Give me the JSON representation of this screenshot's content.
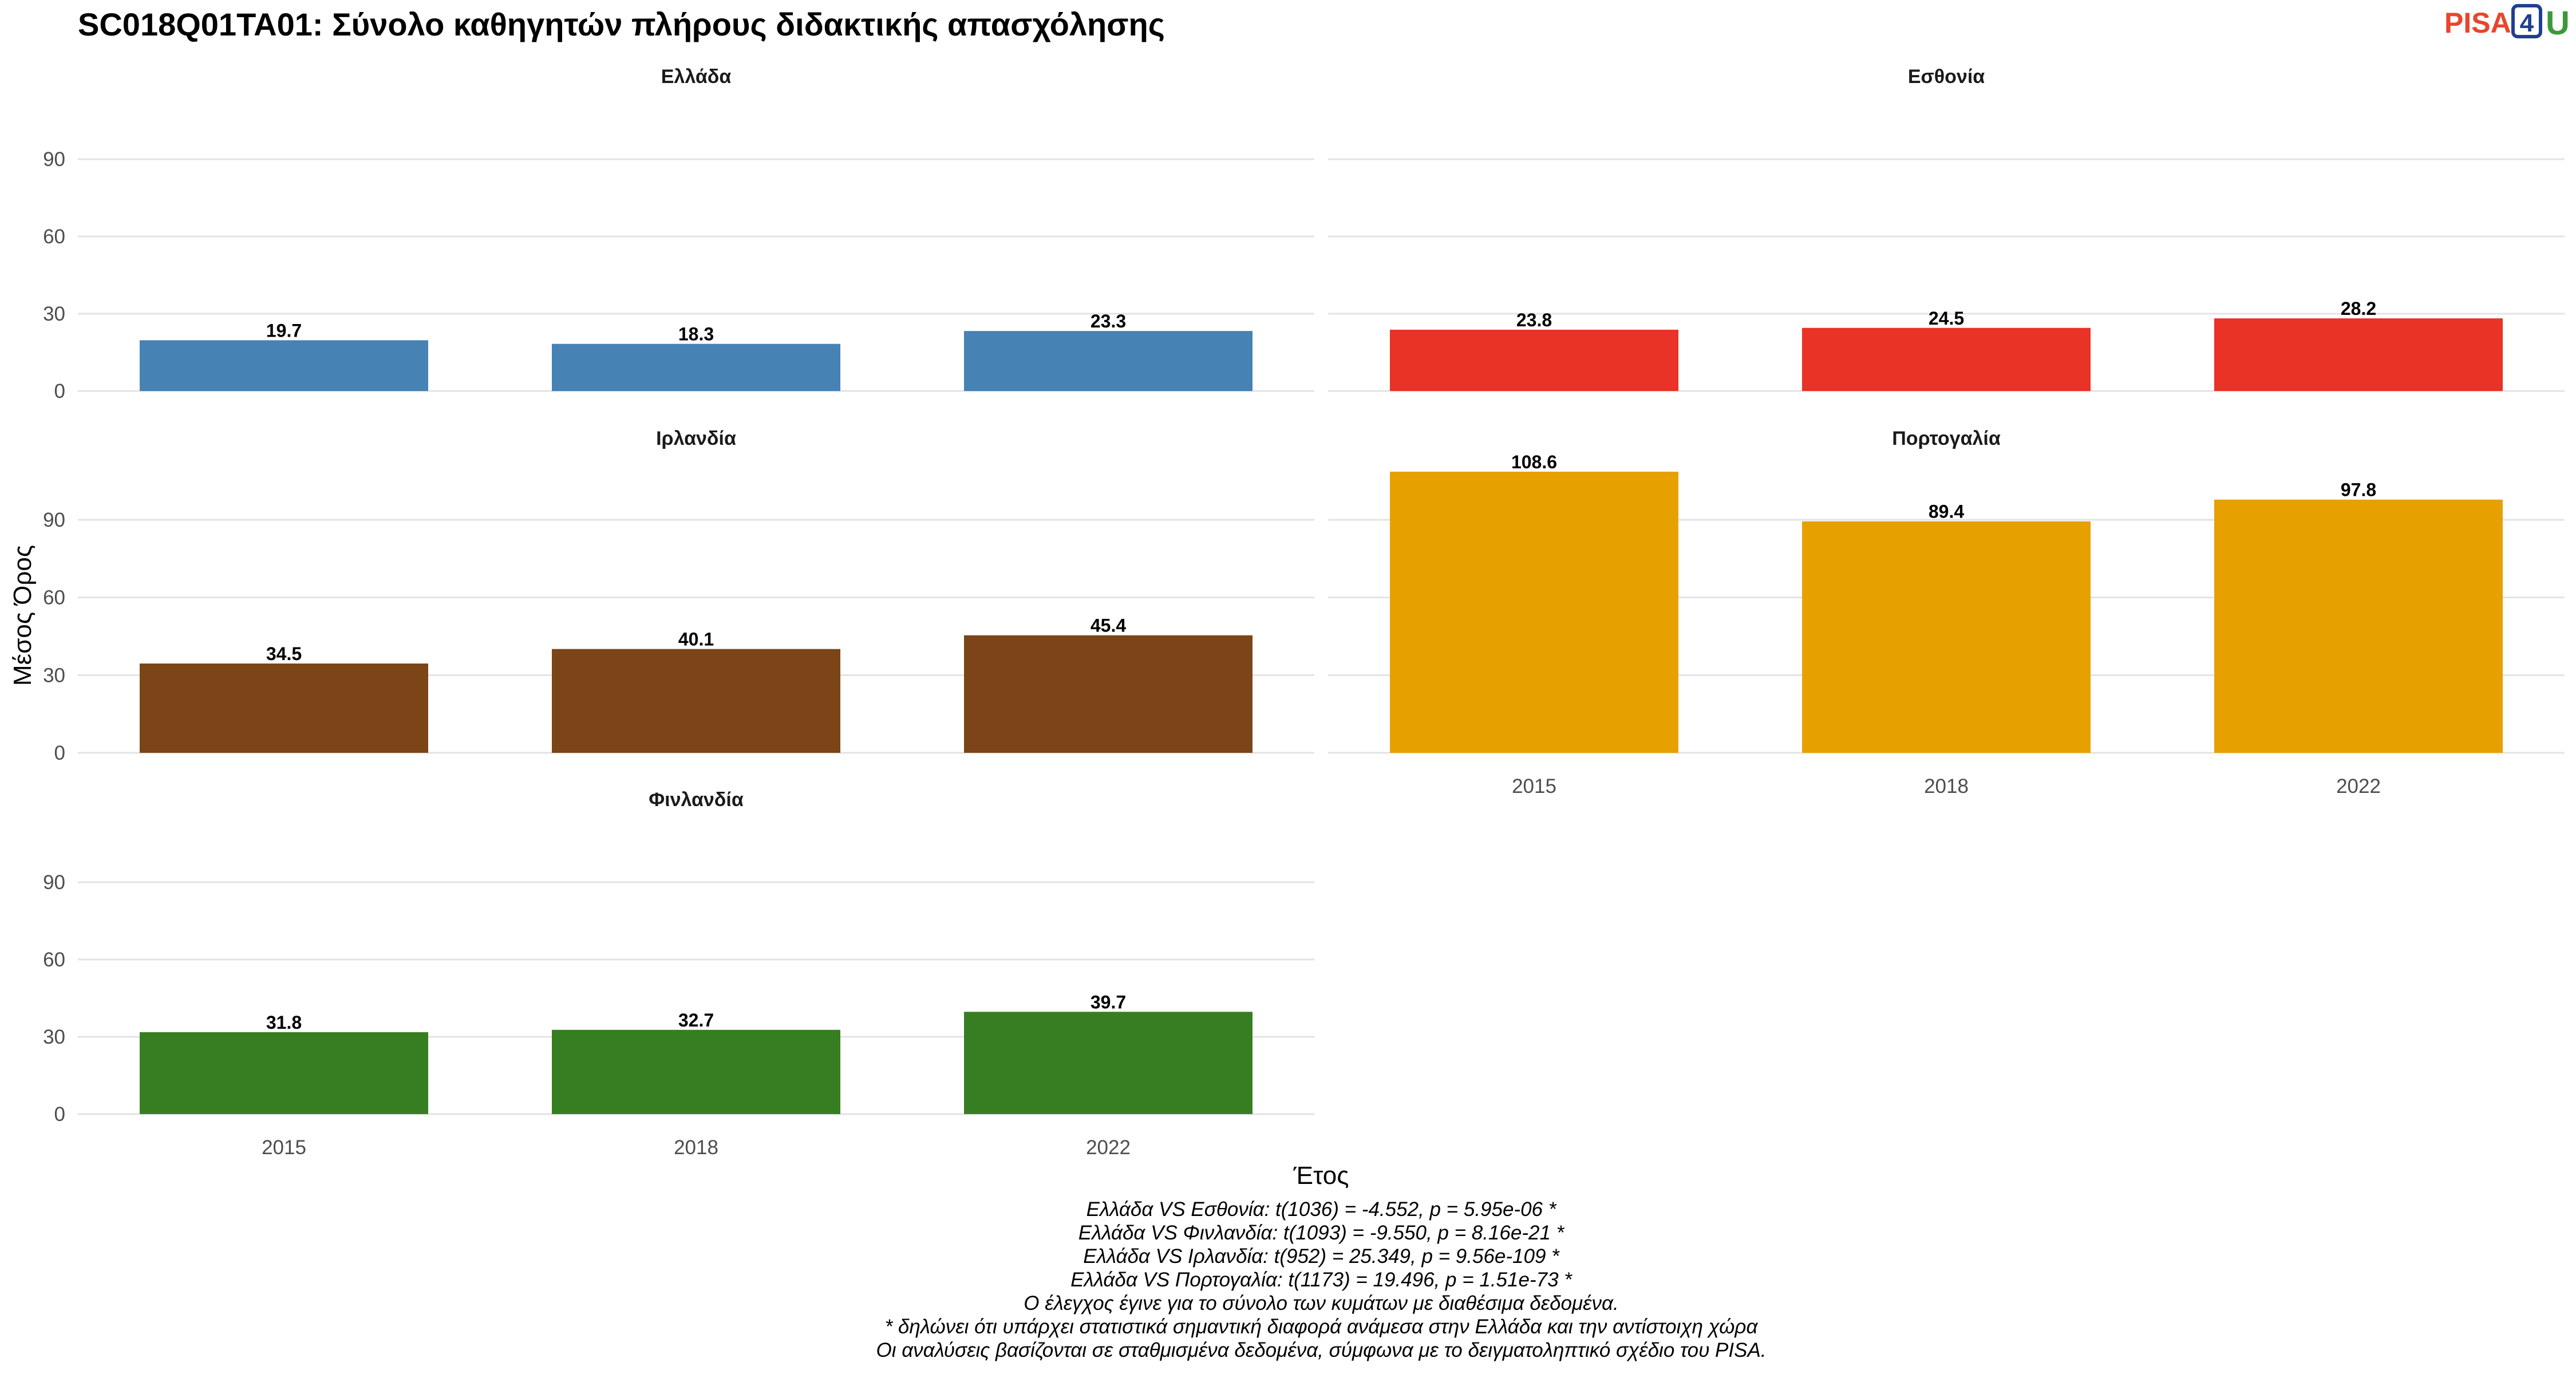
{
  "chart_data": {
    "type": "bar",
    "title": "SC018Q01TA01: Σύνολο καθηγητών πλήρους διδακτικής απασχόλησης",
    "xlabel": "Έτος",
    "ylabel": "Μέσος Όρος",
    "categories": [
      "2015",
      "2018",
      "2022"
    ],
    "ylim": [
      0,
      110
    ],
    "yticks": [
      "0",
      "30",
      "60",
      "90"
    ],
    "grid": true,
    "panels": [
      {
        "name": "Ελλάδα",
        "color": "#4682b4",
        "values": [
          19.7,
          18.3,
          23.3
        ],
        "labels": [
          "19.7",
          "18.3",
          "23.3"
        ]
      },
      {
        "name": "Εσθονία",
        "color": "#e83326",
        "values": [
          23.8,
          24.5,
          28.2
        ],
        "labels": [
          "23.8",
          "24.5",
          "28.2"
        ]
      },
      {
        "name": "Ιρλανδία",
        "color": "#7b4518",
        "values": [
          34.5,
          40.1,
          45.4
        ],
        "labels": [
          "34.5",
          "40.1",
          "45.4"
        ]
      },
      {
        "name": "Πορτογαλία",
        "color": "#e6a100",
        "values": [
          108.6,
          89.4,
          97.8
        ],
        "labels": [
          "108.6",
          "89.4",
          "97.8"
        ]
      },
      {
        "name": "Φινλανδία",
        "color": "#377e22",
        "values": [
          31.8,
          32.7,
          39.7
        ],
        "labels": [
          "31.8",
          "32.7",
          "39.7"
        ]
      }
    ]
  },
  "caption_lines": [
    "Ελλάδα VS Εσθονία: t(1036) = -4.552, p = 5.95e-06 *",
    "Ελλάδα VS Φινλανδία: t(1093) = -9.550, p = 8.16e-21 *",
    "Ελλάδα VS Ιρλανδία: t(952) = 25.349, p = 9.56e-109 *",
    "Ελλάδα VS Πορτογαλία: t(1173) = 19.496, p = 1.51e-73 *",
    "Ο έλεγχος έγινε για το σύνολο των κυμάτων με διαθέσιμα δεδομένα.",
    "* δηλώνει ότι υπάρχει στατιστικά σημαντική διαφορά ανάμεσα στην Ελλάδα και την αντίστοιχη χώρα",
    "Οι αναλύσεις βασίζονται σε σταθμισμένα δεδομένα, σύμφωνα με το δειγματοληπτικό σχέδιο του PISA."
  ],
  "logo": {
    "part1": "PISA",
    "part2": "4",
    "part3": "U"
  }
}
